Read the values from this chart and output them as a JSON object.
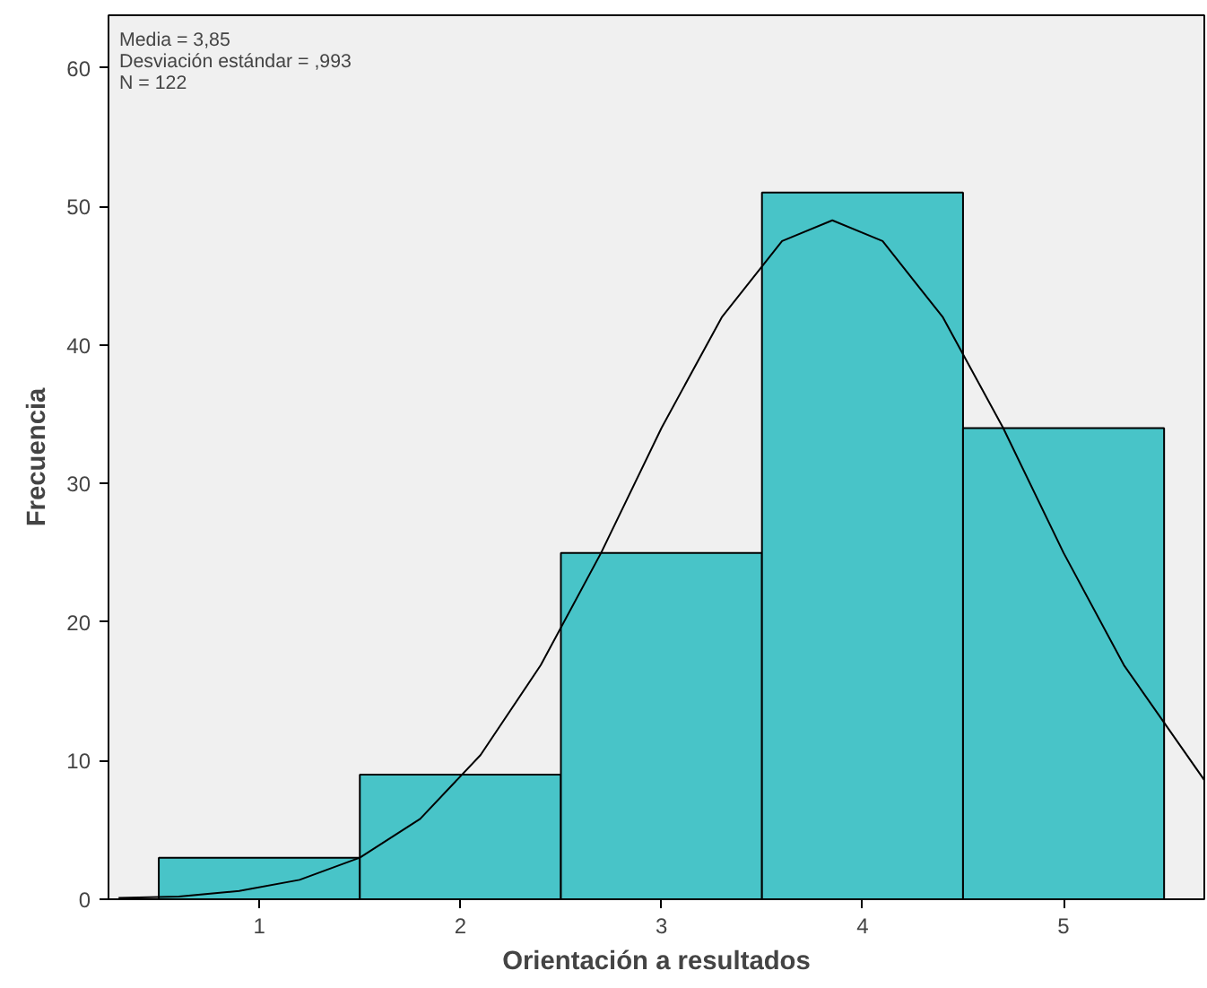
{
  "chart_data": {
    "type": "histogram",
    "xlabel": "Orientación a resultados",
    "ylabel": "Frecuencia",
    "bins": [
      0.5,
      1.5,
      2.5,
      3.5,
      4.5,
      5.5
    ],
    "values": [
      3,
      9,
      25,
      51,
      34
    ],
    "color": "#48c4c8",
    "series": [
      {
        "type": "line",
        "color": "#000000",
        "x": [
          0.3,
          0.6,
          0.9,
          1.2,
          1.5,
          1.8,
          2.1,
          2.4,
          2.7,
          3.0,
          3.3,
          3.6,
          3.85,
          4.1,
          4.4,
          4.7,
          5.0,
          5.3,
          5.7
        ],
        "values": [
          0.1,
          0.2,
          0.6,
          1.4,
          3.0,
          5.8,
          10.4,
          16.9,
          25.0,
          34.0,
          42.0,
          47.5,
          49.0,
          47.5,
          42.0,
          34.0,
          25.0,
          16.9,
          8.6
        ]
      }
    ],
    "annotations": [
      "Media = 3,85",
      "Desviación estándar = ,993",
      "N = 122"
    ],
    "xlim": [
      0.25,
      5.7
    ],
    "ylim": [
      0,
      63.8
    ],
    "xticks": [
      1,
      2,
      3,
      4,
      5
    ],
    "yticks": [
      0,
      10,
      20,
      30,
      40,
      50,
      60
    ],
    "grid": false
  }
}
